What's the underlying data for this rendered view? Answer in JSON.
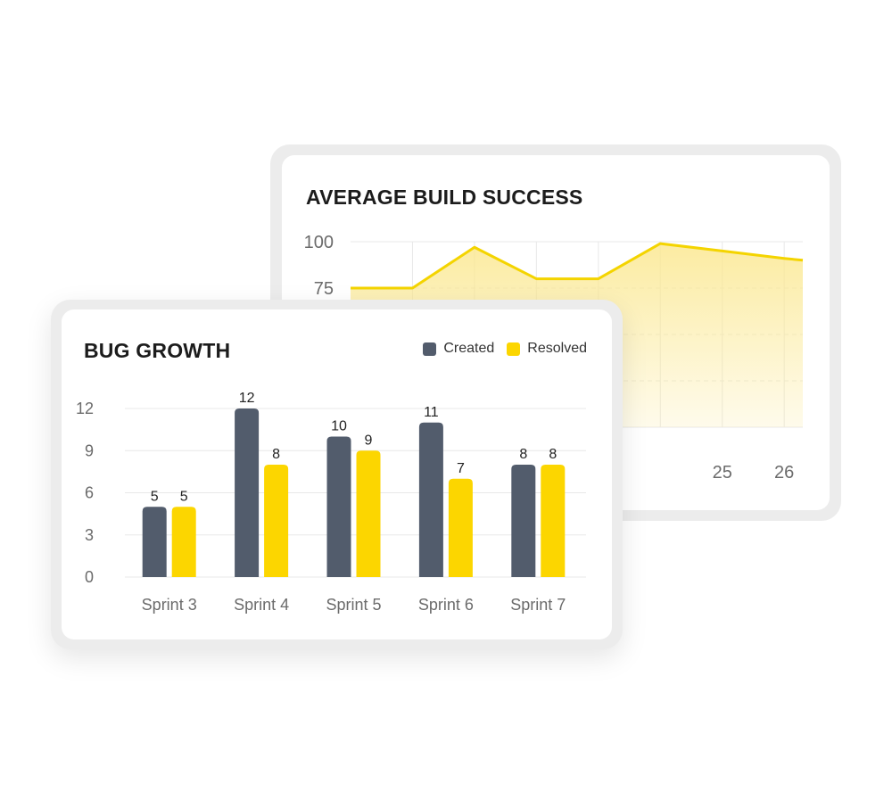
{
  "build_card": {
    "title": "AVERAGE BUILD SUCCESS"
  },
  "bug_card": {
    "title": "BUG GROWTH"
  },
  "colors": {
    "created": "#525c6c",
    "resolved": "#fcd600",
    "line": "#f4d400",
    "area_fill": "#fbe891",
    "grid": "#e8e8e8",
    "tick_text": "#6b6b6b"
  },
  "chart_data": [
    {
      "type": "area",
      "title": "AVERAGE BUILD SUCCESS",
      "xlabel": "",
      "ylabel": "",
      "x": [
        19,
        20,
        21,
        22,
        23,
        24,
        25,
        26,
        26.3
      ],
      "values": [
        75,
        75,
        97,
        80,
        80,
        99,
        95,
        91,
        90
      ],
      "visible_y_ticks": [
        "100",
        "75"
      ],
      "visible_x_ticks": [
        "25",
        "26"
      ],
      "ylim": [
        0,
        100
      ],
      "grid": true
    },
    {
      "type": "bar",
      "title": "BUG GROWTH",
      "categories": [
        "Sprint 3",
        "Sprint 4",
        "Sprint 5",
        "Sprint 6",
        "Sprint 7"
      ],
      "series": [
        {
          "name": "Created",
          "values": [
            5,
            12,
            10,
            11,
            8
          ],
          "labels": [
            "5",
            "12",
            "10",
            "11",
            "8"
          ]
        },
        {
          "name": "Resolved",
          "values": [
            5,
            8,
            9,
            7,
            8
          ],
          "labels": [
            "5",
            "8",
            "9",
            "7",
            "8"
          ]
        }
      ],
      "y_ticks": [
        "0",
        "3",
        "6",
        "9",
        "12"
      ],
      "ylim": [
        0,
        12
      ],
      "legend_position": "top-right",
      "grid": true,
      "xlabel": "",
      "ylabel": ""
    }
  ]
}
